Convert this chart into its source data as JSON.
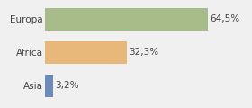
{
  "categories": [
    "Asia",
    "Africa",
    "Europa"
  ],
  "values": [
    3.2,
    32.3,
    64.5
  ],
  "labels": [
    "3,2%",
    "32,3%",
    "64,5%"
  ],
  "bar_colors": [
    "#6b8cba",
    "#e8b87a",
    "#a8bc8a"
  ],
  "background_color": "#f0f0f0",
  "xlim": [
    0,
    80
  ],
  "label_fontsize": 7.5,
  "tick_fontsize": 7.5
}
